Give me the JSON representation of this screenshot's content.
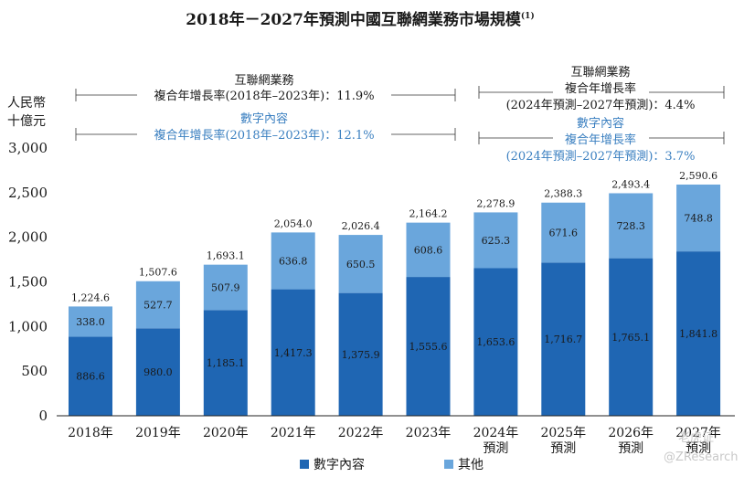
{
  "chart_data": {
    "type": "bar",
    "stacked": true,
    "title": "2018年－2027年預測中國互聯網業務市場規模",
    "title_footnote": "(1)",
    "ylabel_lines": [
      "人民幣",
      "十億元"
    ],
    "y_ticks": [
      "3,000",
      "2,500",
      "2,000",
      "1,500",
      "1,000",
      "500",
      "0"
    ],
    "ylim": [
      0,
      3000
    ],
    "categories": [
      [
        "2018年"
      ],
      [
        "2019年"
      ],
      [
        "2020年"
      ],
      [
        "2021年"
      ],
      [
        "2022年"
      ],
      [
        "2023年"
      ],
      [
        "2024年",
        "預測"
      ],
      [
        "2025年",
        "預測"
      ],
      [
        "2026年",
        "預測"
      ],
      [
        "2027年",
        "預測"
      ]
    ],
    "series": [
      {
        "name": "數字內容",
        "color": "#1f66b3",
        "values": [
          886.6,
          980.0,
          1185.1,
          1417.3,
          1375.9,
          1555.6,
          1653.6,
          1716.7,
          1765.1,
          1841.8
        ],
        "labels": [
          "886.6",
          "980.0",
          "1,185.1",
          "1,417.3",
          "1,375.9",
          "1,555.6",
          "1,653.6",
          "1,716.7",
          "1,765.1",
          "1,841.8"
        ]
      },
      {
        "name": "其他",
        "color": "#6aa6dc",
        "values": [
          338.0,
          527.7,
          507.9,
          636.8,
          650.5,
          608.6,
          625.3,
          671.6,
          728.3,
          748.8
        ],
        "labels": [
          "338.0",
          "527.7",
          "507.9",
          "636.8",
          "650.5",
          "608.6",
          "625.3",
          "671.6",
          "728.3",
          "748.8"
        ]
      }
    ],
    "totals": [
      1224.6,
      1507.6,
      1693.1,
      2054.0,
      2026.4,
      2164.2,
      2278.9,
      2388.3,
      2493.4,
      2590.6
    ],
    "total_labels": [
      "1,224.6",
      "1,507.6",
      "1,693.1",
      "2,054.0",
      "2,026.4",
      "2,164.2",
      "2,278.9",
      "2,388.3",
      "2,493.4",
      "2,590.6"
    ],
    "annotations": {
      "left": {
        "black_lines": [
          "互聯網業務",
          "複合年增長率(2018年–2023年)：11.9%"
        ],
        "blue_lines": [
          "數字內容",
          "複合年增長率(2018年–2023年)：12.1%"
        ]
      },
      "right": {
        "black_lines": [
          "互聯網業務",
          "複合年增長率",
          "(2024年預測–2027年預測)：4.4%"
        ],
        "blue_lines": [
          "數字內容",
          "複合年增長率",
          "(2024年預測–2027年預測)：3.7%"
        ]
      }
    },
    "legend": [
      "數字內容",
      "其他"
    ]
  },
  "watermark": [
    "老虎证",
    "@ZResearch"
  ]
}
